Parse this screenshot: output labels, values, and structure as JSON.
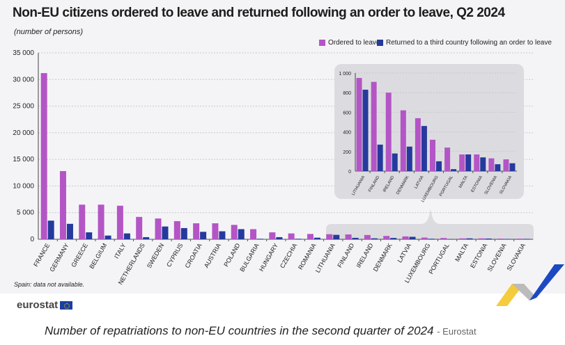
{
  "title": "Non-EU citizens ordered to leave and returned following an order to leave, Q2 2024",
  "subtitle": "(number of persons)",
  "note": "Spain: data not available.",
  "logo": "eurostat",
  "caption": "Number of repatriations to non-EU countries in the second quarter of 2024",
  "caption_source": "- Eurostat",
  "colors": {
    "ordered": "#b455c6",
    "returned": "#253a9c"
  },
  "chart_data": [
    {
      "type": "bar",
      "title": "Non-EU citizens ordered to leave and returned following an order to leave, Q2 2024",
      "ylabel": "(number of persons)",
      "ylim": [
        0,
        35000
      ],
      "yticks": [
        "0",
        "5 000",
        "10 000",
        "15 000",
        "20 000",
        "25 000",
        "30 000",
        "35 000"
      ],
      "grid": true,
      "legend_position": "top-right",
      "categories": [
        "FRANCE",
        "GERMANY",
        "GREECE",
        "BELGIUM",
        "ITALY",
        "NETHERLANDS",
        "SWEDEN",
        "CYPRUS",
        "CROATIA",
        "AUSTRIA",
        "POLAND",
        "BULGARIA",
        "HUNGARY",
        "CZECHIA",
        "ROMANIA",
        "LITHUANIA",
        "FINLAND",
        "IRELAND",
        "DENMARK",
        "LATVIA",
        "LUXEMBOURG",
        "PORTUGAL",
        "MALTA",
        "ESTONIA",
        "SLOVENIA",
        "SLOVAKIA"
      ],
      "series": [
        {
          "name": "Ordered to leave",
          "values": [
            31200,
            12800,
            6500,
            6500,
            6300,
            4200,
            3900,
            3400,
            3000,
            3000,
            2700,
            1900,
            1300,
            1100,
            1000,
            950,
            910,
            800,
            620,
            540,
            320,
            240,
            170,
            170,
            130,
            120
          ]
        },
        {
          "name": "Returned to a third country following an order to leave",
          "values": [
            3500,
            2900,
            1300,
            700,
            1100,
            400,
            2400,
            2100,
            1400,
            1500,
            1900,
            100,
            400,
            100,
            300,
            830,
            270,
            180,
            250,
            460,
            100,
            20,
            170,
            140,
            70,
            80
          ]
        }
      ]
    },
    {
      "type": "bar",
      "title": "inset",
      "ylim": [
        0,
        1000
      ],
      "yticks": [
        "0",
        "200",
        "400",
        "600",
        "800",
        "1 000"
      ],
      "categories": [
        "LITHUANIA",
        "FINLAND",
        "IRELAND",
        "DENMARK",
        "LATVIA",
        "LUXEMBOURG",
        "PORTUGAL",
        "MALTA",
        "ESTONIA",
        "SLOVENIA",
        "SLOVAKIA"
      ],
      "series": [
        {
          "name": "Ordered to leave",
          "values": [
            950,
            910,
            800,
            620,
            540,
            320,
            240,
            170,
            170,
            130,
            120
          ]
        },
        {
          "name": "Returned to a third country following an order to leave",
          "values": [
            830,
            270,
            180,
            250,
            460,
            100,
            20,
            170,
            140,
            70,
            80
          ]
        }
      ]
    }
  ]
}
